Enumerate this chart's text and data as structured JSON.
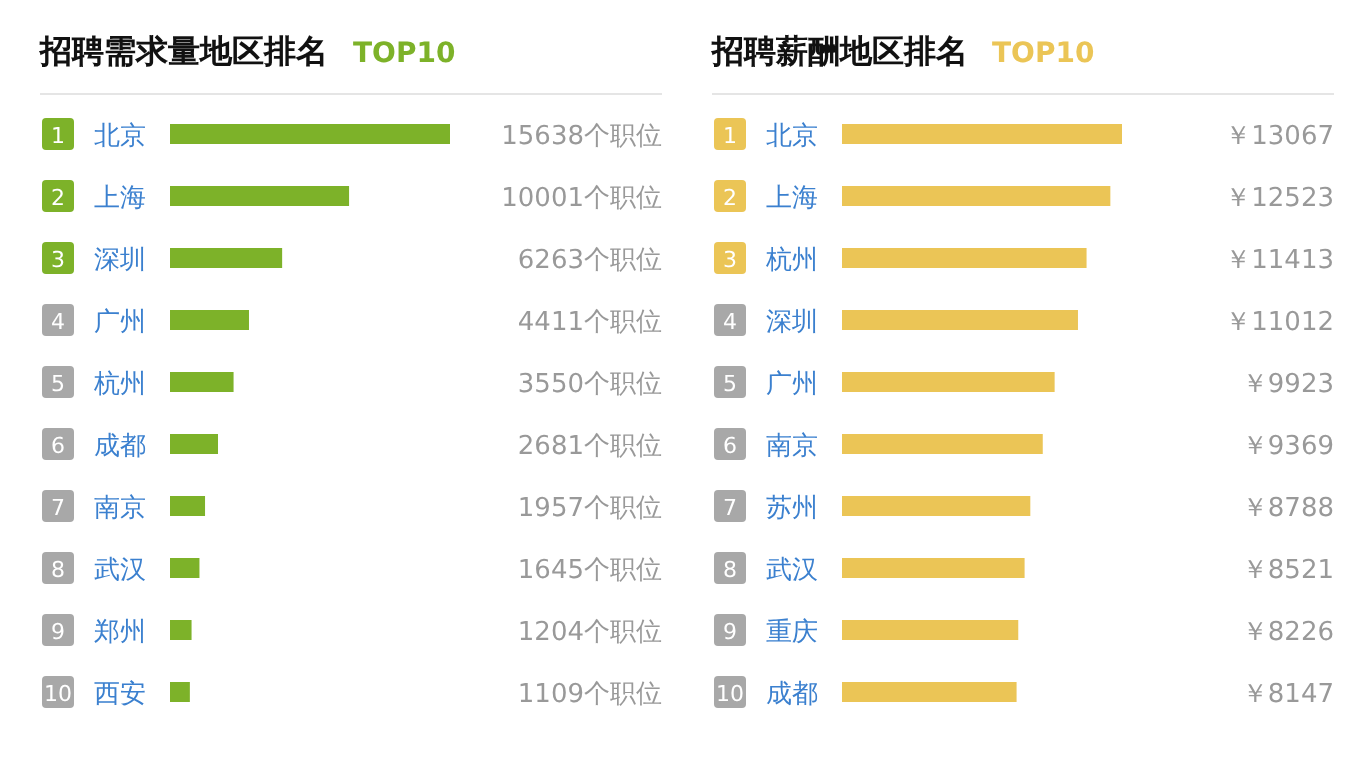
{
  "chart_data": [
    {
      "type": "bar",
      "orientation": "horizontal",
      "title": "招聘需求量地区排名",
      "subtitle": "TOP10",
      "categories": [
        "北京",
        "上海",
        "深圳",
        "广州",
        "杭州",
        "成都",
        "南京",
        "武汉",
        "郑州",
        "西安"
      ],
      "values": [
        15638,
        10001,
        6263,
        4411,
        3550,
        2681,
        1957,
        1645,
        1204,
        1109
      ],
      "value_labels": [
        "15638个职位",
        "10001个职位",
        "6263个职位",
        "4411个职位",
        "3550个职位",
        "2681个职位",
        "1957个职位",
        "1645个职位",
        "1204个职位",
        "1109个职位"
      ],
      "color": "#7db229",
      "annotations": [
        "1",
        "2",
        "3",
        "4",
        "5",
        "6",
        "7",
        "8",
        "9",
        "10"
      ]
    },
    {
      "type": "bar",
      "orientation": "horizontal",
      "title": "招聘薪酬地区排名",
      "subtitle": "TOP10",
      "categories": [
        "北京",
        "上海",
        "杭州",
        "深圳",
        "广州",
        "南京",
        "苏州",
        "武汉",
        "重庆",
        "成都"
      ],
      "values": [
        13067,
        12523,
        11413,
        11012,
        9923,
        9369,
        8788,
        8521,
        8226,
        8147
      ],
      "value_labels": [
        "￥13067",
        "￥12523",
        "￥11413",
        "￥11012",
        "￥9923",
        "￥9369",
        "￥8788",
        "￥8521",
        "￥8226",
        "￥8147"
      ],
      "color": "#ebc556",
      "annotations": [
        "1",
        "2",
        "3",
        "4",
        "5",
        "6",
        "7",
        "8",
        "9",
        "10"
      ]
    }
  ]
}
